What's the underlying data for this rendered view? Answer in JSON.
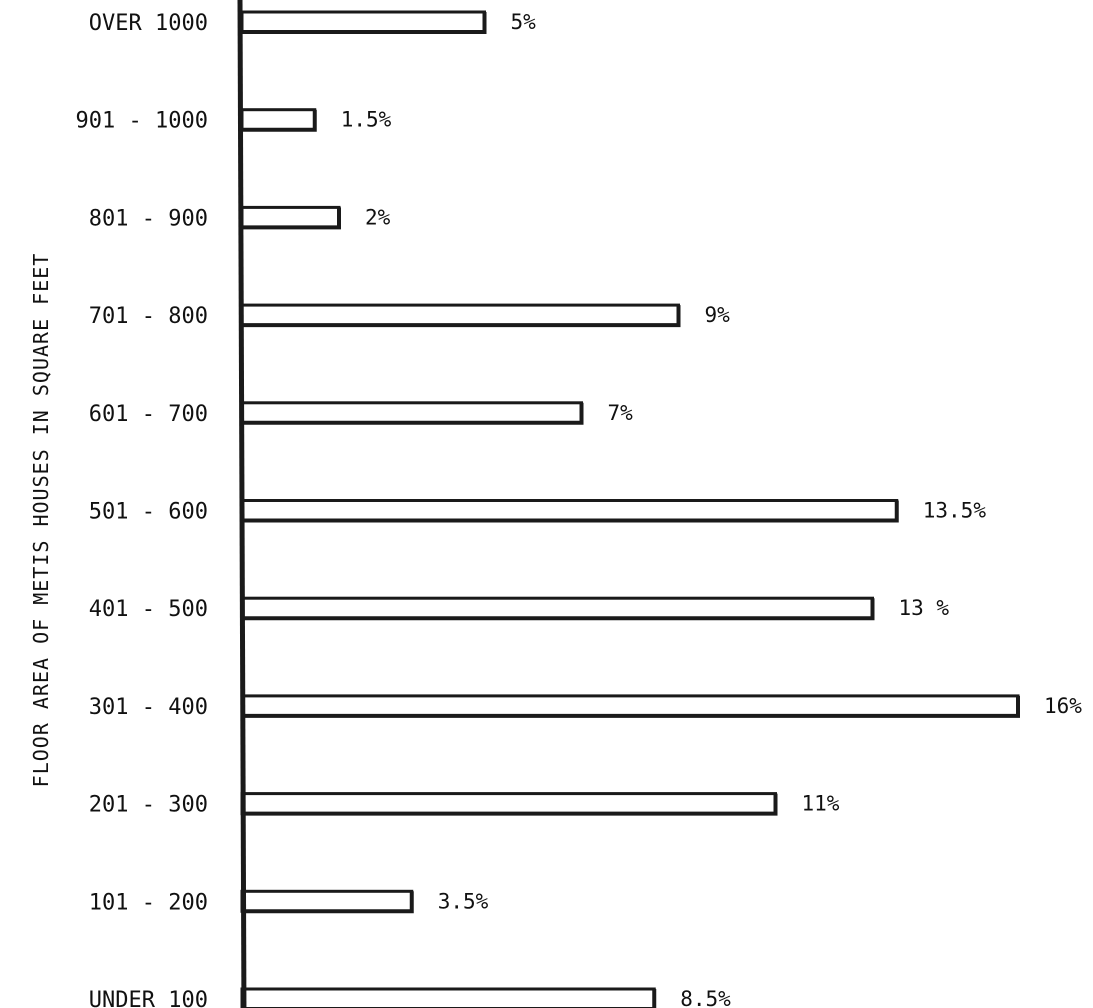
{
  "chart_data": {
    "type": "bar",
    "orientation": "horizontal",
    "ylabel": "FLOOR AREA OF METIS HOUSES IN SQUARE FEET",
    "xlabel": "",
    "title": "",
    "categories": [
      "OVER 1000",
      "901 - 1000",
      "801 - 900",
      "701 - 800",
      "601 - 700",
      "501 - 600",
      "401 - 500",
      "301 - 400",
      "201 - 300",
      "101 - 200",
      "UNDER 100"
    ],
    "values": [
      5,
      1.5,
      2,
      9,
      7,
      13.5,
      13,
      16,
      11,
      3.5,
      8.5
    ],
    "value_labels": [
      "5%",
      "1.5%",
      "2%",
      "9%",
      "7%",
      "13.5%",
      "13 %",
      "16%",
      "11%",
      "3.5%",
      "8.5%"
    ],
    "unit": "%",
    "xlim": [
      0,
      16
    ],
    "grid": false,
    "legend": "none",
    "colors": {
      "bar_fill": "#ffffff",
      "bar_stroke": "#1a1a1a",
      "text": "#111111"
    }
  }
}
